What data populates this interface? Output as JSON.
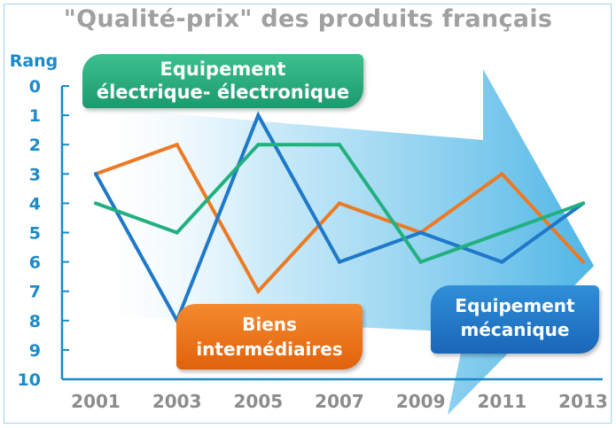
{
  "chart_data": {
    "type": "line",
    "title": "\"Qualité-prix\" des produits français",
    "ylabel": "Rang",
    "x": [
      "2001",
      "2003",
      "2005",
      "2007",
      "2009",
      "2011",
      "2013"
    ],
    "yticks": [
      "0",
      "1",
      "2",
      "3",
      "4",
      "5",
      "6",
      "7",
      "8",
      "9",
      "10"
    ],
    "ylim": [
      0,
      10
    ],
    "y_inverted": true,
    "grid": false,
    "series": [
      {
        "name": "Biens intermédiaires",
        "color": "#ec7a24",
        "values": [
          3,
          2,
          7,
          4,
          5,
          3,
          6
        ]
      },
      {
        "name": "Equipement mécanique",
        "color": "#1f78c8",
        "values": [
          3,
          8,
          1,
          6,
          5,
          6,
          4
        ]
      },
      {
        "name": "Equipement électrique- électronique",
        "color": "#22b07e",
        "values": [
          4,
          5,
          2,
          2,
          6,
          5,
          4
        ]
      }
    ],
    "labels": {
      "elec": [
        "Equipement",
        "électrique- électronique"
      ],
      "biens": [
        "Biens",
        "intermédiaires"
      ],
      "meca": [
        "Equipement",
        "mécanique"
      ]
    },
    "colors": {
      "axis": "#1a8ac9",
      "tick_x": "#8c8c8c",
      "arrow": "#5bc0ec"
    }
  }
}
